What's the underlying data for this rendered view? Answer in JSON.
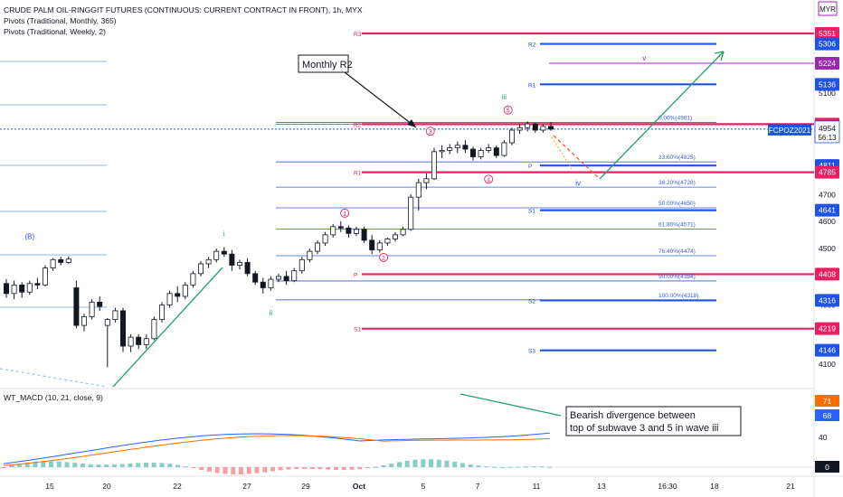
{
  "chart_data": {
    "type": "candlestick",
    "symbol_title": "CRUDE PALM OIL-RINGGIT FUTURES (CONTINUOUS: CURRENT CONTRACT IN FRONT), 1h, MYX",
    "indicator_lines": [
      "Pivots (Traditional, Monthly, 365)",
      "Pivots (Traditional, Weekly, 2)"
    ],
    "currency": "MYR",
    "price_axis": {
      "ticks": [
        4100,
        4200,
        4300,
        4400,
        4500,
        4600,
        4700,
        4800,
        4900,
        5000,
        5100,
        5200,
        5300
      ],
      "tick_labels": [
        "4100",
        "",
        "4300",
        "",
        "4500",
        "4600",
        "4700",
        "",
        "",
        "",
        "5100",
        "",
        ""
      ],
      "range": [
        4080,
        5410
      ],
      "scale": "log"
    },
    "time_axis": {
      "labels": [
        "15",
        "20",
        "22",
        "27",
        "29",
        "Oct",
        "5",
        "7",
        "11",
        "13",
        "16:30",
        "18",
        "21"
      ]
    },
    "last_price": {
      "value": "4954",
      "countdown": "56:13",
      "contract_label": "FCPOZ2021"
    },
    "price_badges": [
      {
        "value": "5351",
        "color": "#e91e63"
      },
      {
        "value": "5306",
        "color": "#1e53e5"
      },
      {
        "value": "5224",
        "color": "#9c27b0"
      },
      {
        "value": "5136",
        "color": "#1e53e5"
      },
      {
        "value": "4974",
        "color": "#e91e63"
      },
      {
        "value": "4811",
        "color": "#1e53e5"
      },
      {
        "value": "4785",
        "color": "#e91e63"
      },
      {
        "value": "4641",
        "color": "#1e53e5"
      },
      {
        "value": "4408",
        "color": "#e91e63"
      },
      {
        "value": "4316",
        "color": "#1e53e5"
      },
      {
        "value": "4219",
        "color": "#e91e63"
      },
      {
        "value": "4146",
        "color": "#1e53e5"
      }
    ],
    "monthly_pivots": [
      {
        "label": "R3",
        "value": 5351
      },
      {
        "label": "R2",
        "value": 4974
      },
      {
        "label": "R1",
        "value": 4785
      },
      {
        "label": "P",
        "value": 4408
      },
      {
        "label": "S1",
        "value": 4219
      }
    ],
    "weekly_pivots": [
      {
        "label": "R2",
        "value": 5306
      },
      {
        "label": "R1",
        "value": 5136
      },
      {
        "label": "P",
        "value": 4811
      },
      {
        "label": "S1",
        "value": 4641
      },
      {
        "label": "S2",
        "value": 4316
      },
      {
        "label": "S3",
        "value": 4146
      }
    ],
    "fib_levels": [
      {
        "label": "0.00%(4981)",
        "value": 4981
      },
      {
        "label": "23.60%(4825)",
        "value": 4825
      },
      {
        "label": "38.20%(4728)",
        "value": 4728
      },
      {
        "label": "50.00%(4650)",
        "value": 4650
      },
      {
        "label": "61.80%(4571)",
        "value": 4571
      },
      {
        "label": "76.40%(4474)",
        "value": 4474
      },
      {
        "label": "90.00%(4384)",
        "value": 4384
      },
      {
        "label": "100.00%(4318)",
        "value": 4318
      }
    ],
    "wave_labels": [
      {
        "text": "(B)",
        "x": 3,
        "price": 4535
      },
      {
        "text": "i",
        "x": 28,
        "price": 4545
      },
      {
        "text": "ii",
        "x": 34,
        "price": 4265
      },
      {
        "text": "iii",
        "x": 64,
        "price": 5075
      },
      {
        "text": "iv",
        "x": 73.5,
        "price": 4733
      },
      {
        "text": "v",
        "x": 82,
        "price": 5235
      },
      {
        "text": "1",
        "x": 43.5,
        "price": 4620
      },
      {
        "text": "2",
        "x": 48.5,
        "price": 4458
      },
      {
        "text": "3",
        "x": 54.5,
        "price": 4935
      },
      {
        "text": "4",
        "x": 62,
        "price": 4748
      },
      {
        "text": "5",
        "x": 64.5,
        "price": 5020
      }
    ],
    "annotations": [
      {
        "text": "Monthly R2"
      },
      {
        "text": "Bearish divergence between\ntop of subwave 3 and 5 in wave iii"
      }
    ],
    "candles": [
      {
        "o": 4375,
        "h": 4390,
        "l": 4325,
        "c": 4340
      },
      {
        "o": 4340,
        "h": 4385,
        "l": 4320,
        "c": 4370
      },
      {
        "o": 4370,
        "h": 4380,
        "l": 4325,
        "c": 4345
      },
      {
        "o": 4345,
        "h": 4385,
        "l": 4335,
        "c": 4375
      },
      {
        "o": 4375,
        "h": 4395,
        "l": 4355,
        "c": 4370
      },
      {
        "o": 4370,
        "h": 4440,
        "l": 4365,
        "c": 4430
      },
      {
        "o": 4430,
        "h": 4465,
        "l": 4420,
        "c": 4460
      },
      {
        "o": 4460,
        "h": 4470,
        "l": 4440,
        "c": 4450
      },
      {
        "o": 4450,
        "h": 4472,
        "l": 4445,
        "c": 4462
      },
      {
        "o": 4360,
        "h": 4385,
        "l": 4220,
        "c": 4230
      },
      {
        "o": 4230,
        "h": 4270,
        "l": 4210,
        "c": 4260
      },
      {
        "o": 4260,
        "h": 4320,
        "l": 4250,
        "c": 4310
      },
      {
        "o": 4310,
        "h": 4330,
        "l": 4280,
        "c": 4295
      },
      {
        "o": 4230,
        "h": 4255,
        "l": 4090,
        "c": 4250
      },
      {
        "o": 4250,
        "h": 4290,
        "l": 4240,
        "c": 4280
      },
      {
        "o": 4280,
        "h": 4290,
        "l": 4140,
        "c": 4160
      },
      {
        "o": 4160,
        "h": 4200,
        "l": 4140,
        "c": 4190
      },
      {
        "o": 4190,
        "h": 4200,
        "l": 4150,
        "c": 4165
      },
      {
        "o": 4165,
        "h": 4200,
        "l": 4150,
        "c": 4185
      },
      {
        "o": 4185,
        "h": 4260,
        "l": 4180,
        "c": 4250
      },
      {
        "o": 4250,
        "h": 4310,
        "l": 4240,
        "c": 4300
      },
      {
        "o": 4300,
        "h": 4350,
        "l": 4290,
        "c": 4340
      },
      {
        "o": 4340,
        "h": 4365,
        "l": 4310,
        "c": 4330
      },
      {
        "o": 4330,
        "h": 4380,
        "l": 4320,
        "c": 4370
      },
      {
        "o": 4370,
        "h": 4420,
        "l": 4360,
        "c": 4410
      },
      {
        "o": 4410,
        "h": 4455,
        "l": 4400,
        "c": 4445
      },
      {
        "o": 4445,
        "h": 4470,
        "l": 4430,
        "c": 4460
      },
      {
        "o": 4460,
        "h": 4500,
        "l": 4450,
        "c": 4490
      },
      {
        "o": 4490,
        "h": 4505,
        "l": 4470,
        "c": 4480
      },
      {
        "o": 4480,
        "h": 4495,
        "l": 4420,
        "c": 4440
      },
      {
        "o": 4440,
        "h": 4460,
        "l": 4425,
        "c": 4450
      },
      {
        "o": 4450,
        "h": 4465,
        "l": 4400,
        "c": 4410
      },
      {
        "o": 4410,
        "h": 4420,
        "l": 4370,
        "c": 4380
      },
      {
        "o": 4380,
        "h": 4395,
        "l": 4340,
        "c": 4360
      },
      {
        "o": 4360,
        "h": 4400,
        "l": 4350,
        "c": 4390
      },
      {
        "o": 4390,
        "h": 4410,
        "l": 4380,
        "c": 4400
      },
      {
        "o": 4400,
        "h": 4420,
        "l": 4370,
        "c": 4385
      },
      {
        "o": 4385,
        "h": 4430,
        "l": 4380,
        "c": 4420
      },
      {
        "o": 4420,
        "h": 4470,
        "l": 4410,
        "c": 4460
      },
      {
        "o": 4460,
        "h": 4500,
        "l": 4450,
        "c": 4490
      },
      {
        "o": 4490,
        "h": 4530,
        "l": 4480,
        "c": 4520
      },
      {
        "o": 4520,
        "h": 4560,
        "l": 4510,
        "c": 4550
      },
      {
        "o": 4550,
        "h": 4590,
        "l": 4540,
        "c": 4580
      },
      {
        "o": 4580,
        "h": 4600,
        "l": 4560,
        "c": 4575
      },
      {
        "o": 4575,
        "h": 4585,
        "l": 4540,
        "c": 4555
      },
      {
        "o": 4555,
        "h": 4580,
        "l": 4545,
        "c": 4570
      },
      {
        "o": 4570,
        "h": 4580,
        "l": 4520,
        "c": 4530
      },
      {
        "o": 4530,
        "h": 4550,
        "l": 4480,
        "c": 4495
      },
      {
        "o": 4495,
        "h": 4530,
        "l": 4485,
        "c": 4520
      },
      {
        "o": 4520,
        "h": 4540,
        "l": 4510,
        "c": 4535
      },
      {
        "o": 4535,
        "h": 4560,
        "l": 4525,
        "c": 4550
      },
      {
        "o": 4550,
        "h": 4580,
        "l": 4545,
        "c": 4570
      },
      {
        "o": 4570,
        "h": 4700,
        "l": 4565,
        "c": 4690
      },
      {
        "o": 4690,
        "h": 4760,
        "l": 4640,
        "c": 4745
      },
      {
        "o": 4745,
        "h": 4780,
        "l": 4720,
        "c": 4760
      },
      {
        "o": 4760,
        "h": 4880,
        "l": 4755,
        "c": 4865
      },
      {
        "o": 4865,
        "h": 4890,
        "l": 4840,
        "c": 4870
      },
      {
        "o": 4870,
        "h": 4895,
        "l": 4855,
        "c": 4880
      },
      {
        "o": 4880,
        "h": 4905,
        "l": 4860,
        "c": 4890
      },
      {
        "o": 4890,
        "h": 4910,
        "l": 4860,
        "c": 4875
      },
      {
        "o": 4875,
        "h": 4885,
        "l": 4830,
        "c": 4845
      },
      {
        "o": 4845,
        "h": 4880,
        "l": 4835,
        "c": 4870
      },
      {
        "o": 4870,
        "h": 4895,
        "l": 4860,
        "c": 4880
      },
      {
        "o": 4880,
        "h": 4890,
        "l": 4840,
        "c": 4850
      },
      {
        "o": 4850,
        "h": 4910,
        "l": 4845,
        "c": 4900
      },
      {
        "o": 4900,
        "h": 4960,
        "l": 4890,
        "c": 4950
      },
      {
        "o": 4950,
        "h": 4975,
        "l": 4935,
        "c": 4960
      },
      {
        "o": 4960,
        "h": 4985,
        "l": 4945,
        "c": 4975
      },
      {
        "o": 4975,
        "h": 4980,
        "l": 4940,
        "c": 4950
      },
      {
        "o": 4950,
        "h": 4975,
        "l": 4940,
        "c": 4965
      },
      {
        "o": 4965,
        "h": 4982,
        "l": 4948,
        "c": 4954
      }
    ],
    "macd": {
      "title": "WT_MACD (10, 21, close, 9)",
      "axis_ticks": [
        "40",
        "0"
      ],
      "badges": [
        {
          "value": "71",
          "color": "#ff6d00"
        },
        {
          "value": "68",
          "color": "#2962ff"
        }
      ]
    }
  }
}
